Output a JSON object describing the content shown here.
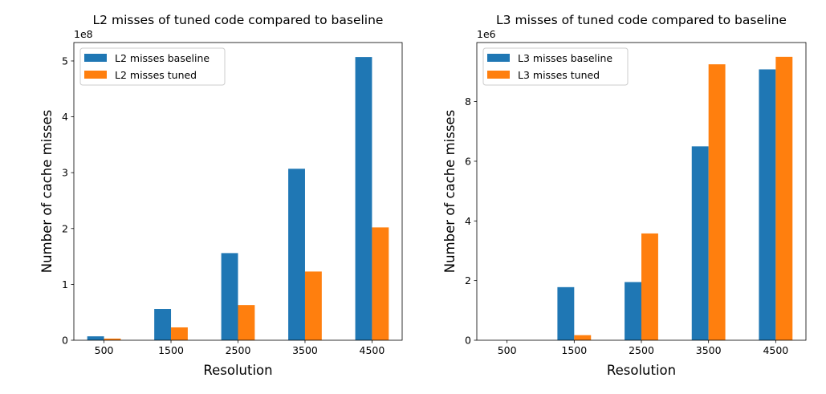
{
  "chart_data": [
    {
      "type": "bar",
      "title": "L2 misses of tuned code compared to baseline",
      "xlabel": "Resolution",
      "ylabel": "Number of cache misses",
      "categories": [
        "500",
        "1500",
        "2500",
        "3500",
        "4500"
      ],
      "offset_text": "1e8",
      "scale": 100000000,
      "ylim": [
        0,
        5.33
      ],
      "yticks": [
        0,
        1,
        2,
        3,
        4,
        5
      ],
      "grid": false,
      "legend": "top-left",
      "series": [
        {
          "name": "L2 misses baseline",
          "color": "#1f77b4",
          "values": [
            0.07,
            0.56,
            1.56,
            3.07,
            5.07
          ]
        },
        {
          "name": "L2 misses tuned",
          "color": "#ff7f0e",
          "values": [
            0.03,
            0.23,
            0.63,
            1.23,
            2.02
          ]
        }
      ]
    },
    {
      "type": "bar",
      "title": "L3 misses of tuned code compared to baseline",
      "xlabel": "Resolution",
      "ylabel": "Number of cache misses",
      "categories": [
        "500",
        "1500",
        "2500",
        "3500",
        "4500"
      ],
      "offset_text": "1e6",
      "scale": 1000000,
      "ylim": [
        0,
        9.98
      ],
      "yticks": [
        0,
        2,
        4,
        6,
        8
      ],
      "grid": false,
      "legend": "top-left",
      "series": [
        {
          "name": "L3 misses baseline",
          "color": "#1f77b4",
          "values": [
            0.0,
            1.78,
            1.95,
            6.5,
            9.08
          ]
        },
        {
          "name": "L3 misses tuned",
          "color": "#ff7f0e",
          "values": [
            0.0,
            0.17,
            3.58,
            9.25,
            9.5
          ]
        }
      ]
    }
  ]
}
